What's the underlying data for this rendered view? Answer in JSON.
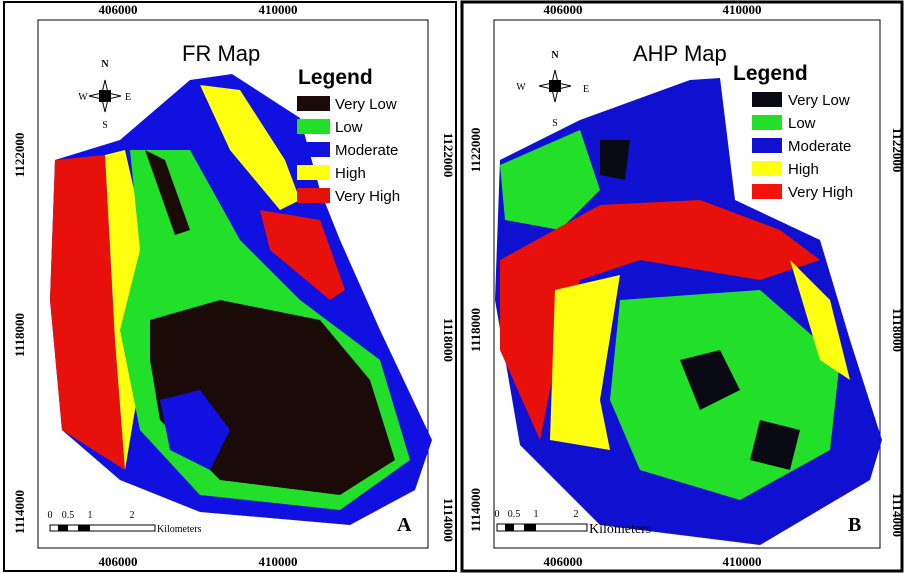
{
  "panels": [
    {
      "title": "FR Map",
      "letter": "A",
      "legend": {
        "title": "Legend",
        "items": [
          {
            "label": "Very Low",
            "color": "#1a0a08"
          },
          {
            "label": "Low",
            "color": "#22e02a"
          },
          {
            "label": "Moderate",
            "color": "#1010e0"
          },
          {
            "label": "High",
            "color": "#ffff10"
          },
          {
            "label": "Very High",
            "color": "#e8100a"
          }
        ]
      },
      "top_ticks": [
        "406000",
        "410000"
      ],
      "bottom_ticks": [
        "406000",
        "410000"
      ],
      "left_ticks": [
        "1122000",
        "1118000",
        "1114000"
      ],
      "right_ticks": [
        "1122000",
        "1118000",
        "1114000"
      ],
      "scale": {
        "labels": [
          "0",
          "0.5",
          "1",
          "2"
        ],
        "unit": "Kilometers"
      },
      "compass": {
        "n": "N",
        "s": "S",
        "e": "E",
        "w": "W"
      }
    },
    {
      "title": "AHP Map",
      "letter": "B",
      "legend": {
        "title": "Legend",
        "items": [
          {
            "label": "Very Low",
            "color": "#0a0a14"
          },
          {
            "label": "Low",
            "color": "#22e02a"
          },
          {
            "label": "Moderate",
            "color": "#1010d0"
          },
          {
            "label": "High",
            "color": "#ffff10"
          },
          {
            "label": "Very High",
            "color": "#f0140a"
          }
        ]
      },
      "top_ticks": [
        "406000",
        "410000"
      ],
      "bottom_ticks": [
        "406000",
        "410000"
      ],
      "left_ticks": [
        "1122000",
        "1118000",
        "1114000"
      ],
      "right_ticks": [
        "1122000",
        "1118000",
        "1114000"
      ],
      "scale": {
        "labels": [
          "0",
          "0.5",
          "1",
          "2"
        ],
        "unit": "Kilometers"
      },
      "compass": {
        "n": "N",
        "s": "S",
        "e": "E",
        "w": "W"
      }
    }
  ]
}
